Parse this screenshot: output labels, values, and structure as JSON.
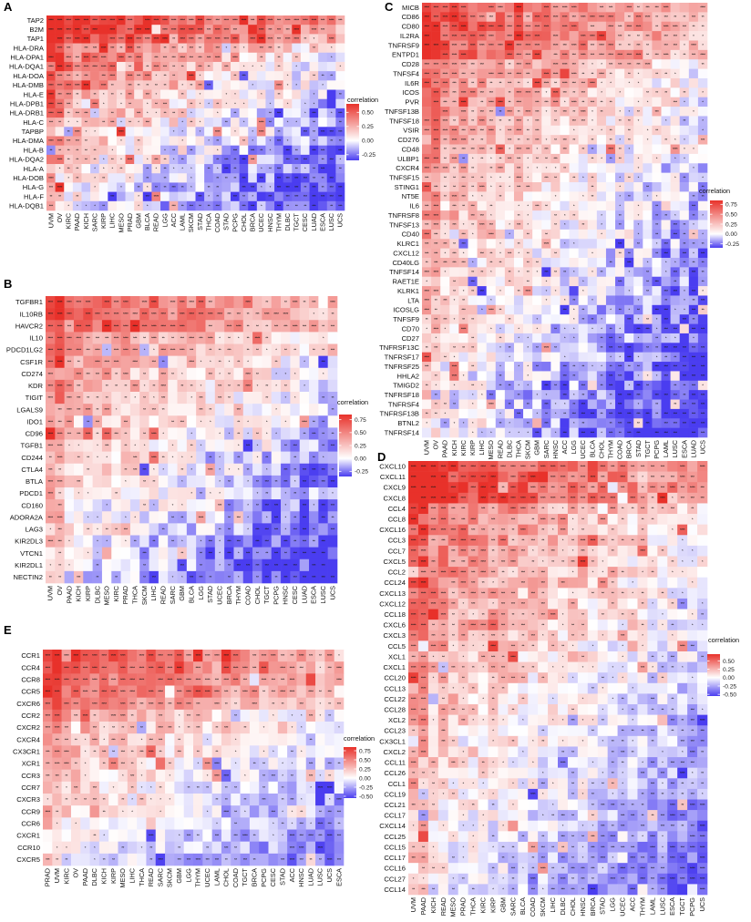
{
  "figure": {
    "colors": {
      "low": "#4a3df0",
      "mid": "#ffffff",
      "high": "#e8312a"
    },
    "panels": [
      {
        "letter": "A",
        "legend_title": "correlation",
        "rows": [
          "TAP2",
          "B2M",
          "TAP1",
          "HLA-DRA",
          "HLA-DPA1",
          "HLA-DQA1",
          "HLA-DOA",
          "HLA-DMB",
          "HLA-E",
          "HLA-DPB1",
          "HLA-DRB1",
          "HLA-C",
          "TAPBP",
          "HLA-DMA",
          "HLA-B",
          "HLA-DQA2",
          "HLA-A",
          "HLA-DOB",
          "HLA-G",
          "HLA-F",
          "HLA-DQB1"
        ],
        "cols": [
          "UVM",
          "OV",
          "KIRC",
          "PAAD",
          "KICH",
          "SARC",
          "KIRP",
          "LIHC",
          "MESO",
          "PRAD",
          "GBM",
          "BLCA",
          "READ",
          "LGG",
          "ACC",
          "LAML",
          "SKCM",
          "STAD",
          "THCA",
          "COAD",
          "STAD",
          "PCPG",
          "CHOL",
          "BRCA",
          "UCEC",
          "HNSC",
          "THYM",
          "DLBC",
          "TGCT",
          "CESC",
          "LUAD",
          "ESCA",
          "LUSC",
          "UCS"
        ],
        "legend_ticks": [
          "0.50",
          "0.25",
          "0.00",
          "-0.25"
        ],
        "legend_values": [
          0.5,
          0.25,
          0,
          -0.25
        ],
        "range": [
          -0.35,
          0.65
        ],
        "hot_rows": 3,
        "seed": 11
      },
      {
        "letter": "B",
        "legend_title": "correlation",
        "rows": [
          "TGFBR1",
          "IL10RB",
          "HAVCR2",
          "IL10",
          "PDCD1LG2",
          "CSF1R",
          "CD274",
          "KDR",
          "TIGIT",
          "LGALS9",
          "IDO1",
          "CD96",
          "TGFB1",
          "CD244",
          "CTLA4",
          "BTLA",
          "PDCD1",
          "CD160",
          "ADORA2A",
          "LAG3",
          "KIR2DL3",
          "VTCN1",
          "KIR2DL1",
          "NECTIN2"
        ],
        "cols": [
          "UVM",
          "OV",
          "PAAD",
          "KICH",
          "KIRP",
          "DLBC",
          "MESO",
          "KIRC",
          "PRAD",
          "THCA",
          "SKCM",
          "LIHC",
          "READ",
          "SARC",
          "GBM",
          "BLCA",
          "LGG",
          "STAD",
          "UCEC",
          "BRCA",
          "THYM",
          "COAD",
          "CHOL",
          "TGCT",
          "PCPG",
          "HNSC",
          "CESC",
          "LUAD",
          "ESCA",
          "LUSC",
          "UCS"
        ],
        "legend_ticks": [
          "0.75",
          "0.50",
          "0.25",
          "0.00",
          "-0.25"
        ],
        "legend_values": [
          0.75,
          0.5,
          0.25,
          0,
          -0.25
        ],
        "range": [
          -0.35,
          0.85
        ],
        "hot_rows": 3,
        "seed": 23
      },
      {
        "letter": "C",
        "legend_title": "correlation",
        "rows": [
          "MICB",
          "CD86",
          "CD80",
          "IL2RA",
          "TNFRSF9",
          "ENTPD1",
          "CD28",
          "TNFSF4",
          "IL6R",
          "ICOS",
          "PVR",
          "TNFSF13B",
          "TNFSF18",
          "VSIR",
          "CD276",
          "CD48",
          "ULBP1",
          "CXCR4",
          "TNFSF15",
          "STING1",
          "NT5E",
          "IL6",
          "TNFRSF8",
          "TNFSF13",
          "CD40",
          "KLRC1",
          "CXCL12",
          "CD40LG",
          "TNFSF14",
          "RAET1E",
          "KLRK1",
          "LTA",
          "ICOSLG",
          "TNFSF9",
          "CD70",
          "CD27",
          "TNFRSF13C",
          "TNFRSF17",
          "TNFRSF25",
          "HHLA2",
          "TMIGD2",
          "TNFRSF18",
          "TNFRSF4",
          "TNFRSF13B",
          "BTNL2",
          "TNFRSF14"
        ],
        "cols": [
          "UVM",
          "OV",
          "PAAD",
          "KICH",
          "KIRC",
          "KIRP",
          "LIHC",
          "MESO",
          "READ",
          "DLBC",
          "THCA",
          "SKCM",
          "GBM",
          "SARC",
          "HNSC",
          "ACC",
          "LGG",
          "UCEC",
          "BLCA",
          "CHOL",
          "THYM",
          "COAD",
          "BRCA",
          "STAD",
          "TGCT",
          "PCPG",
          "LAML",
          "LUSC",
          "ESCA",
          "LUAD",
          "UCS"
        ],
        "legend_ticks": [
          "0.75",
          "0.50",
          "0.25",
          "0.00",
          "-0.25"
        ],
        "legend_values": [
          0.75,
          0.5,
          0.25,
          0,
          -0.25
        ],
        "range": [
          -0.35,
          0.85
        ],
        "hot_rows": 6,
        "seed": 37
      },
      {
        "letter": "D",
        "legend_title": "correlation",
        "rows": [
          "CXCL10",
          "CXCL11",
          "CXCL9",
          "CXCL8",
          "CCL4",
          "CCL8",
          "CXCL16",
          "CCL3",
          "CCL7",
          "CXCL5",
          "CCL2",
          "CCL24",
          "CXCL13",
          "CXCL12",
          "CCL18",
          "CXCL6",
          "CXCL3",
          "CCL5",
          "XCL1",
          "CXCL1",
          "CCL20",
          "CCL13",
          "CCL22",
          "CCL28",
          "XCL2",
          "CCL23",
          "CX3CL1",
          "CXCL2",
          "CCL11",
          "CCL26",
          "CCL1",
          "CCL19",
          "CCL21",
          "CCL17",
          "CXCL14",
          "CCL25",
          "CCL15",
          "CCL17",
          "CCL16",
          "CCL27",
          "CCL14"
        ],
        "cols": [
          "UVM",
          "PAAD",
          "KICH",
          "READ",
          "MESO",
          "PRAD",
          "THCA",
          "KIRC",
          "KIRP",
          "GBM",
          "SARC",
          "BLCA",
          "COAD",
          "SKCM",
          "LIHC",
          "DLBC",
          "CHOL",
          "HNSC",
          "BRCA",
          "STAD",
          "LGG",
          "UCEC",
          "ACC",
          "THYM",
          "LAML",
          "LUSC",
          "ESCA",
          "TGCT",
          "PCPG",
          "UCS"
        ],
        "legend_ticks": [
          "0.50",
          "0.25",
          "0.00",
          "-0.25",
          "-0.50"
        ],
        "legend_values": [
          0.5,
          0.25,
          0,
          -0.25,
          -0.5
        ],
        "range": [
          -0.55,
          0.7
        ],
        "hot_rows": 4,
        "seed": 53
      },
      {
        "letter": "E",
        "legend_title": "correlation",
        "rows": [
          "CCR1",
          "CCR4",
          "CCR8",
          "CCR5",
          "CXCR6",
          "CCR2",
          "CXCR2",
          "CXCR4",
          "CX3CR1",
          "XCR1",
          "CCR3",
          "CCR7",
          "CXCR3",
          "CCR9",
          "CCR6",
          "CXCR1",
          "CCR10",
          "CXCR5"
        ],
        "cols": [
          "PRAD",
          "UVM",
          "KIRC",
          "OV",
          "PAAD",
          "DLBC",
          "KICH",
          "KIRP",
          "MESO",
          "LIHC",
          "THCA",
          "READ",
          "SARC",
          "SKCM",
          "GBM",
          "LGG",
          "THYM",
          "UCEC",
          "LAML",
          "CHOL",
          "COAD",
          "TGCT",
          "BRCA",
          "PCPG",
          "CESC",
          "STAD",
          "ACC",
          "HNSC",
          "LUAD",
          "LUSC",
          "UCS",
          "ESCA"
        ],
        "legend_ticks": [
          "0.75",
          "0.50",
          "0.25",
          "0.00",
          "-0.25",
          "-0.50"
        ],
        "legend_values": [
          0.75,
          0.5,
          0.25,
          0,
          -0.25,
          -0.5
        ],
        "range": [
          -0.55,
          0.85
        ],
        "hot_rows": 5,
        "seed": 71
      }
    ]
  },
  "chart_data": [
    {
      "type": "heatmap",
      "panel": "A",
      "title": "",
      "xlabel": "",
      "ylabel": "",
      "legend": "correlation",
      "colorbar_range": [
        -0.35,
        0.65
      ],
      "rows": [
        "TAP2",
        "B2M",
        "TAP1",
        "HLA-DRA",
        "HLA-DPA1",
        "HLA-DQA1",
        "HLA-DOA",
        "HLA-DMB",
        "HLA-E",
        "HLA-DPB1",
        "HLA-DRB1",
        "HLA-C",
        "TAPBP",
        "HLA-DMA",
        "HLA-B",
        "HLA-DQA2",
        "HLA-A",
        "HLA-DOB",
        "HLA-G",
        "HLA-F",
        "HLA-DQB1"
      ],
      "cols": [
        "UVM",
        "OV",
        "KIRC",
        "PAAD",
        "KICH",
        "SARC",
        "KIRP",
        "LIHC",
        "MESO",
        "PRAD",
        "GBM",
        "BLCA",
        "READ",
        "LGG",
        "ACC",
        "LAML",
        "SKCM",
        "STAD",
        "THCA",
        "COAD",
        "STAD",
        "PCPG",
        "CHOL",
        "BRCA",
        "UCEC",
        "HNSC",
        "THYM",
        "DLBC",
        "TGCT",
        "CESC",
        "LUAD",
        "ESCA",
        "LUSC",
        "UCS"
      ],
      "value_pattern": "estimated: strong positive (red) in top rows and left columns fading to negative (blue) toward bottom-right; asterisks mark significance"
    },
    {
      "type": "heatmap",
      "panel": "B",
      "title": "",
      "xlabel": "",
      "ylabel": "",
      "legend": "correlation",
      "colorbar_range": [
        -0.35,
        0.85
      ],
      "rows": [
        "TGFBR1",
        "IL10RB",
        "HAVCR2",
        "IL10",
        "PDCD1LG2",
        "CSF1R",
        "CD274",
        "KDR",
        "TIGIT",
        "LGALS9",
        "IDO1",
        "CD96",
        "TGFB1",
        "CD244",
        "CTLA4",
        "BTLA",
        "PDCD1",
        "CD160",
        "ADORA2A",
        "LAG3",
        "KIR2DL3",
        "VTCN1",
        "KIR2DL1",
        "NECTIN2"
      ],
      "cols": [
        "UVM",
        "OV",
        "PAAD",
        "KICH",
        "KIRP",
        "DLBC",
        "MESO",
        "KIRC",
        "PRAD",
        "THCA",
        "SKCM",
        "LIHC",
        "READ",
        "SARC",
        "GBM",
        "BLCA",
        "LGG",
        "STAD",
        "UCEC",
        "BRCA",
        "THYM",
        "COAD",
        "CHOL",
        "TGCT",
        "PCPG",
        "HNSC",
        "CESC",
        "LUAD",
        "ESCA",
        "LUSC",
        "UCS"
      ],
      "value_pattern": "estimated gradient"
    },
    {
      "type": "heatmap",
      "panel": "C",
      "title": "",
      "xlabel": "",
      "ylabel": "",
      "legend": "correlation",
      "colorbar_range": [
        -0.35,
        0.85
      ],
      "rows_count": 46,
      "cols_count": 31,
      "value_pattern": "estimated gradient"
    },
    {
      "type": "heatmap",
      "panel": "D",
      "title": "",
      "xlabel": "",
      "ylabel": "",
      "legend": "correlation",
      "colorbar_range": [
        -0.55,
        0.7
      ],
      "rows_count": 41,
      "cols_count": 30,
      "value_pattern": "estimated gradient"
    },
    {
      "type": "heatmap",
      "panel": "E",
      "title": "",
      "xlabel": "",
      "ylabel": "",
      "legend": "correlation",
      "colorbar_range": [
        -0.55,
        0.85
      ],
      "rows_count": 18,
      "cols_count": 32,
      "value_pattern": "estimated gradient"
    }
  ]
}
